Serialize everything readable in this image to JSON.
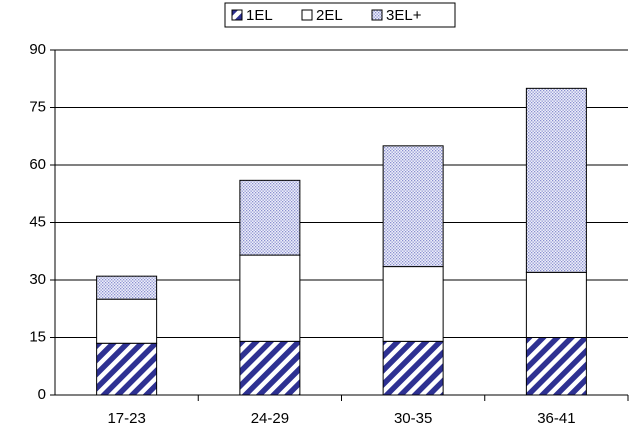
{
  "chart_data": {
    "type": "stacked-bar",
    "categories": [
      "17-23",
      "24-29",
      "30-35",
      "36-41"
    ],
    "series": [
      {
        "name": "1EL",
        "color": "#2e3192",
        "pattern": "stripes",
        "values": [
          13.5,
          14,
          14,
          15
        ]
      },
      {
        "name": "2EL",
        "color": "#ffffff",
        "pattern": "solid",
        "values": [
          11.5,
          22.5,
          19.5,
          17
        ]
      },
      {
        "name": "3EL+",
        "color": "#8a8fd0",
        "pattern": "dots",
        "values": [
          6,
          19.5,
          31.5,
          48
        ]
      }
    ],
    "ylim": [
      0,
      90
    ],
    "yticks": [
      0,
      15,
      30,
      45,
      60,
      75,
      90
    ],
    "grid": true,
    "legend": "top"
  }
}
